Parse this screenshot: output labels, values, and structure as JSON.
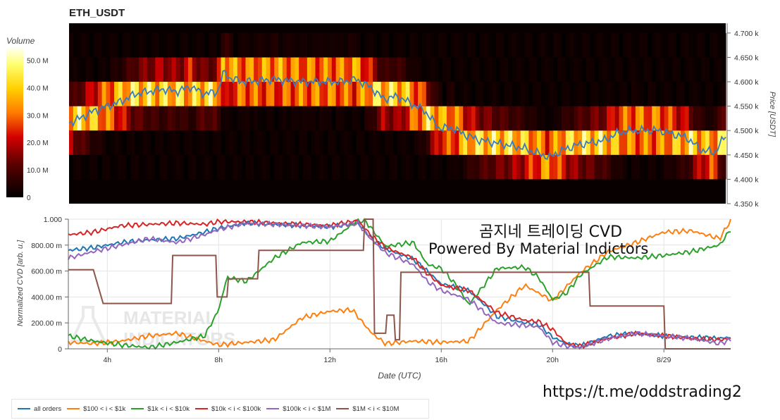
{
  "title": "ETH_USDT",
  "overlay": {
    "line1": "곰지네 트레이딩 CVD",
    "line2": "Powered By Material Indictors",
    "url": "https://t.me/oddstrading2",
    "watermark_line1": "MATERIAL",
    "watermark_line2": "INDICATORS"
  },
  "colors": {
    "all_orders": "#1f77b4",
    "range_100_1k": "#ff7f0e",
    "range_1k_10k": "#2ca02c",
    "range_10k_100k": "#d62728",
    "range_100k_1m": "#9467bd",
    "range_1m_10m": "#8c564b",
    "heatmap_low": "#000000",
    "heatmap_high": "#ffffff",
    "price_line": "#3a7bbf"
  },
  "chart_data": [
    {
      "type": "heatmap",
      "title": "ETH_USDT",
      "colorbar": {
        "label": "Volume",
        "ticks": [
          "0",
          "10.0 M",
          "20.0 M",
          "30.0 M",
          "40.0 M",
          "50.0 M"
        ],
        "range": [
          0,
          55000000
        ]
      },
      "y_axis": {
        "label": "Price [USDT]",
        "ticks": [
          "4.350 k",
          "4.400 k",
          "4.450 k",
          "4.500 k",
          "4.550 k",
          "4.600 k",
          "4.650 k",
          "4.700 k"
        ],
        "range": [
          4350,
          4720
        ],
        "position": "right"
      },
      "price_bins": [
        4400,
        4450,
        4500,
        4550,
        4600,
        4650,
        4700
      ],
      "x_range_hours": [
        2.6,
        26.4
      ],
      "price_series": {
        "name": "Price",
        "x": [
          2.6,
          3.0,
          3.5,
          4.0,
          4.5,
          5.0,
          5.5,
          6.0,
          6.5,
          7.0,
          7.5,
          8.0,
          8.2,
          8.5,
          9.0,
          10.0,
          11.0,
          12.0,
          12.5,
          13.0,
          13.5,
          14.0,
          14.5,
          15.0,
          15.5,
          16.0,
          16.5,
          17.0,
          17.5,
          18.0,
          18.5,
          19.0,
          19.5,
          20.0,
          20.5,
          21.0,
          22.0,
          22.5,
          23.0,
          24.0,
          25.0,
          25.5,
          26.0,
          26.4
        ],
        "y": [
          4515,
          4525,
          4540,
          4550,
          4560,
          4575,
          4580,
          4585,
          4580,
          4590,
          4575,
          4580,
          4620,
          4605,
          4600,
          4605,
          4600,
          4600,
          4600,
          4605,
          4590,
          4565,
          4570,
          4555,
          4540,
          4505,
          4505,
          4490,
          4480,
          4475,
          4470,
          4465,
          4455,
          4445,
          4460,
          4470,
          4480,
          4495,
          4500,
          4500,
          4485,
          4460,
          4455,
          4490
        ]
      }
    },
    {
      "type": "line",
      "xlabel": "Date (UTC)",
      "ylabel": "Normalized CVD [arb. u.]",
      "ylim": [
        0,
        1
      ],
      "xlim": [
        2.6,
        26.4
      ],
      "x_ticks": [
        {
          "label": "4h",
          "value": 4
        },
        {
          "label": "8h",
          "value": 8
        },
        {
          "label": "12h",
          "value": 12
        },
        {
          "label": "16h",
          "value": 16
        },
        {
          "label": "20h",
          "value": 20
        },
        {
          "label": "8/29",
          "value": 24
        }
      ],
      "y_ticks": [
        {
          "label": "0",
          "value": 0
        },
        {
          "label": "200.00 m",
          "value": 0.2
        },
        {
          "label": "400.00 m",
          "value": 0.4
        },
        {
          "label": "600.00 m",
          "value": 0.6
        },
        {
          "label": "800.00 m",
          "value": 0.8
        },
        {
          "label": "1.000",
          "value": 1.0
        }
      ],
      "legend_position": "bottom-left",
      "series": [
        {
          "name": "all orders",
          "color_key": "all_orders",
          "x": [
            2.6,
            3.5,
            4.5,
            5.5,
            6.5,
            7.5,
            8.0,
            9.0,
            10.0,
            11.0,
            12.0,
            13.0,
            13.5,
            14.0,
            15.0,
            15.5,
            16.0,
            17.0,
            18.0,
            19.0,
            19.5,
            20.0,
            20.5,
            21.0,
            22.0,
            23.0,
            24.0,
            25.0,
            26.0,
            26.4
          ],
          "y": [
            0.76,
            0.78,
            0.82,
            0.84,
            0.85,
            0.9,
            0.93,
            0.97,
            0.96,
            0.95,
            0.94,
            0.97,
            0.85,
            0.77,
            0.69,
            0.6,
            0.5,
            0.45,
            0.25,
            0.2,
            0.19,
            0.09,
            0.04,
            0.02,
            0.1,
            0.12,
            0.1,
            0.09,
            0.08,
            0.09
          ]
        },
        {
          "name": "$100 < i < $1k",
          "color_key": "range_100_1k",
          "x": [
            2.6,
            3.5,
            4.5,
            5.5,
            6.5,
            7.5,
            8.0,
            9.0,
            10.0,
            11.0,
            12.0,
            12.8,
            13.0,
            13.5,
            14.0,
            15.0,
            16.0,
            17.0,
            18.0,
            19.0,
            20.0,
            21.0,
            22.0,
            23.0,
            24.0,
            25.0,
            26.0,
            26.4
          ],
          "y": [
            0.05,
            0.04,
            0.06,
            0.1,
            0.12,
            0.06,
            0.03,
            0.05,
            0.07,
            0.24,
            0.29,
            0.3,
            0.25,
            0.12,
            0.04,
            0.06,
            0.05,
            0.06,
            0.3,
            0.49,
            0.37,
            0.59,
            0.75,
            0.82,
            0.9,
            0.91,
            0.85,
            0.99
          ]
        },
        {
          "name": "$1k < i < $10k",
          "color_key": "range_1k_10k",
          "x": [
            2.6,
            3.5,
            4.5,
            5.5,
            6.5,
            7.5,
            8.0,
            8.3,
            9.0,
            10.0,
            11.0,
            12.0,
            13.0,
            13.3,
            14.0,
            15.0,
            15.5,
            16.0,
            16.5,
            17.0,
            18.0,
            19.0,
            19.5,
            20.0,
            20.5,
            21.0,
            22.0,
            23.0,
            24.0,
            25.0,
            26.0,
            26.4
          ],
          "y": [
            0.1,
            0.06,
            0.03,
            0.01,
            0.05,
            0.1,
            0.3,
            0.55,
            0.52,
            0.7,
            0.82,
            0.83,
            0.99,
            0.98,
            0.79,
            0.82,
            0.65,
            0.62,
            0.5,
            0.34,
            0.62,
            0.63,
            0.55,
            0.38,
            0.43,
            0.57,
            0.71,
            0.7,
            0.72,
            0.75,
            0.8,
            0.92
          ]
        },
        {
          "name": "$10k < i < $100k",
          "color_key": "range_10k_100k",
          "x": [
            2.6,
            3.5,
            4.5,
            5.5,
            6.5,
            7.5,
            8.0,
            9.0,
            10.0,
            11.0,
            12.0,
            13.0,
            13.5,
            14.0,
            15.0,
            15.5,
            16.0,
            17.0,
            18.0,
            19.0,
            19.5,
            20.0,
            20.5,
            21.0,
            22.0,
            23.0,
            24.0,
            25.0,
            26.0,
            26.4
          ],
          "y": [
            0.88,
            0.9,
            0.95,
            0.96,
            0.97,
            0.96,
            0.98,
            0.98,
            0.97,
            0.96,
            0.95,
            0.99,
            0.87,
            0.78,
            0.7,
            0.58,
            0.49,
            0.45,
            0.28,
            0.22,
            0.21,
            0.15,
            0.04,
            0.02,
            0.08,
            0.12,
            0.1,
            0.08,
            0.07,
            0.08
          ]
        },
        {
          "name": "$100k < i < $1M",
          "color_key": "range_100k_1m",
          "x": [
            2.6,
            3.5,
            4.5,
            5.5,
            6.5,
            7.5,
            8.0,
            9.0,
            10.0,
            11.0,
            12.0,
            13.0,
            13.5,
            14.0,
            15.0,
            15.5,
            16.0,
            17.0,
            18.0,
            19.0,
            19.5,
            20.0,
            20.5,
            21.0,
            22.0,
            23.0,
            24.0,
            25.0,
            26.0,
            26.4
          ],
          "y": [
            0.7,
            0.75,
            0.8,
            0.85,
            0.82,
            0.88,
            0.92,
            0.97,
            0.96,
            0.95,
            0.94,
            0.97,
            0.84,
            0.74,
            0.65,
            0.52,
            0.45,
            0.38,
            0.2,
            0.18,
            0.17,
            0.05,
            0.02,
            0.01,
            0.08,
            0.12,
            0.1,
            0.08,
            0.04,
            0.07
          ]
        },
        {
          "name": "$1M < i < $10M",
          "color_key": "range_1m_10m",
          "x": [
            2.6,
            3.5,
            3.85,
            3.9,
            6.3,
            6.35,
            7.9,
            7.95,
            8.3,
            8.35,
            8.5,
            8.55,
            9.4,
            9.45,
            13.2,
            13.25,
            13.55,
            13.6,
            14.0,
            14.05,
            14.3,
            14.35,
            14.5,
            14.55,
            21.3,
            21.35,
            24.0,
            24.05,
            26.4
          ],
          "y": [
            0.61,
            0.61,
            0.35,
            0.35,
            0.35,
            0.72,
            0.72,
            0.4,
            0.4,
            0.54,
            0.54,
            0.54,
            0.54,
            0.76,
            0.76,
            1.0,
            1.0,
            0.12,
            0.12,
            0.26,
            0.26,
            0.07,
            0.07,
            0.59,
            0.59,
            0.33,
            0.33,
            0.0,
            0.0
          ]
        }
      ]
    }
  ]
}
